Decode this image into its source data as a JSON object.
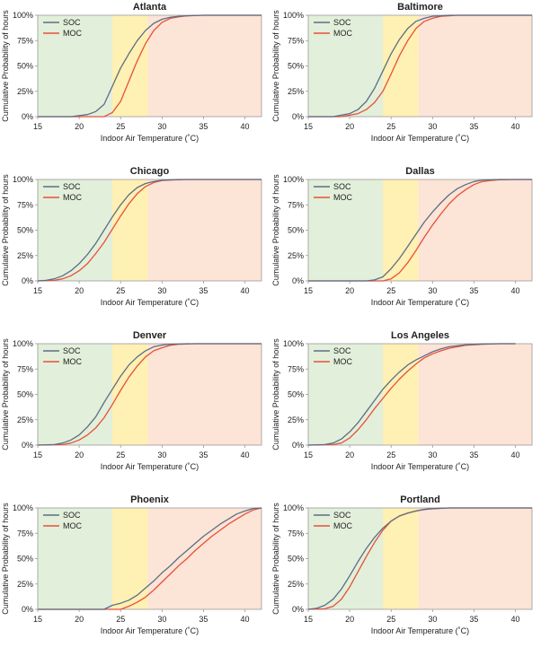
{
  "figure": {
    "xlabel": "Indoor Air Temperature (˚C)",
    "ylabel": "Cumulative Probability of hours",
    "x_ticks": [
      "15",
      "20",
      "25",
      "30",
      "35",
      "40"
    ],
    "y_ticks": [
      "0%",
      "25%",
      "50%",
      "75%",
      "100%"
    ],
    "legend": [
      "SOC",
      "MOC"
    ],
    "colors": {
      "SOC": "#5b6e86",
      "MOC": "#e8503a",
      "band_cool": "#e2efda",
      "band_neutral": "#fff0b3",
      "band_warm": "#fce4d6",
      "frame": "#9a9a9a"
    }
  },
  "chart_data": [
    {
      "type": "line",
      "title": "Atlanta",
      "xlim": [
        15,
        42
      ],
      "ylim": [
        0,
        100
      ],
      "bands": [
        {
          "from": 15,
          "to": 24,
          "name": "cool"
        },
        {
          "from": 24,
          "to": 28.3,
          "name": "neutral"
        },
        {
          "from": 28.3,
          "to": 42,
          "name": "warm"
        }
      ],
      "series": [
        {
          "name": "SOC",
          "x": [
            15,
            19,
            21,
            22,
            23,
            24,
            25,
            26,
            27,
            28,
            29,
            30,
            31,
            32,
            33,
            35,
            42
          ],
          "y": [
            0,
            0,
            2,
            5,
            12,
            30,
            48,
            62,
            75,
            85,
            92,
            96,
            98,
            99,
            99.5,
            100,
            100
          ]
        },
        {
          "name": "MOC",
          "x": [
            15,
            23,
            24,
            25,
            26,
            27,
            28,
            29,
            30,
            31,
            32,
            33,
            35,
            42
          ],
          "y": [
            0,
            0,
            4,
            15,
            35,
            55,
            72,
            85,
            93,
            97,
            98.5,
            99.5,
            100,
            100
          ]
        }
      ]
    },
    {
      "type": "line",
      "title": "Baltimore",
      "xlim": [
        15,
        42
      ],
      "ylim": [
        0,
        100
      ],
      "bands": [
        {
          "from": 15,
          "to": 24,
          "name": "cool"
        },
        {
          "from": 24,
          "to": 28.3,
          "name": "neutral"
        },
        {
          "from": 28.3,
          "to": 42,
          "name": "warm"
        }
      ],
      "series": [
        {
          "name": "SOC",
          "x": [
            15,
            18,
            20,
            21,
            22,
            23,
            24,
            25,
            26,
            27,
            28,
            29,
            30,
            31,
            32,
            33,
            35,
            42
          ],
          "y": [
            0,
            0,
            3,
            7,
            15,
            28,
            45,
            62,
            76,
            87,
            94,
            97,
            99,
            99.5,
            100,
            100,
            100,
            100
          ]
        },
        {
          "name": "MOC",
          "x": [
            15,
            19,
            21,
            22,
            23,
            24,
            25,
            26,
            27,
            28,
            29,
            30,
            31,
            32,
            33,
            35,
            42
          ],
          "y": [
            0,
            0,
            3,
            7,
            14,
            25,
            42,
            60,
            75,
            87,
            94,
            97,
            99,
            99.5,
            100,
            100,
            100
          ]
        }
      ]
    },
    {
      "type": "line",
      "title": "Chicago",
      "xlim": [
        15,
        42
      ],
      "ylim": [
        0,
        100
      ],
      "bands": [
        {
          "from": 15,
          "to": 24,
          "name": "cool"
        },
        {
          "from": 24,
          "to": 28.3,
          "name": "neutral"
        },
        {
          "from": 28.3,
          "to": 42,
          "name": "warm"
        }
      ],
      "series": [
        {
          "name": "SOC",
          "x": [
            15,
            16,
            17,
            18,
            19,
            20,
            21,
            22,
            23,
            24,
            25,
            26,
            27,
            28,
            29,
            30,
            32,
            42
          ],
          "y": [
            0,
            0.5,
            2,
            5,
            10,
            17,
            26,
            37,
            50,
            63,
            75,
            85,
            92,
            96,
            98,
            99.3,
            100,
            100
          ]
        },
        {
          "name": "MOC",
          "x": [
            15,
            17,
            18,
            19,
            20,
            21,
            22,
            23,
            24,
            25,
            26,
            27,
            28,
            29,
            30,
            31,
            33,
            42
          ],
          "y": [
            0,
            0.5,
            2,
            5,
            10,
            17,
            27,
            38,
            51,
            64,
            76,
            86,
            93,
            97,
            99,
            99.5,
            100,
            100
          ]
        }
      ]
    },
    {
      "type": "line",
      "title": "Dallas",
      "xlim": [
        15,
        42
      ],
      "ylim": [
        0,
        100
      ],
      "bands": [
        {
          "from": 15,
          "to": 24,
          "name": "cool"
        },
        {
          "from": 24,
          "to": 28.3,
          "name": "neutral"
        },
        {
          "from": 28.3,
          "to": 42,
          "name": "warm"
        }
      ],
      "series": [
        {
          "name": "SOC",
          "x": [
            15,
            22,
            23,
            24,
            25,
            26,
            27,
            28,
            29,
            30,
            31,
            32,
            33,
            34,
            35,
            36,
            38,
            42
          ],
          "y": [
            0,
            0,
            1,
            4,
            12,
            22,
            34,
            46,
            58,
            68,
            77,
            85,
            91,
            95,
            98,
            99.5,
            100,
            100
          ]
        },
        {
          "name": "MOC",
          "x": [
            15,
            24,
            25,
            26,
            27,
            28,
            29,
            30,
            31,
            32,
            33,
            34,
            35,
            36,
            37,
            38,
            40,
            42
          ],
          "y": [
            0,
            0,
            2,
            8,
            18,
            30,
            43,
            55,
            66,
            76,
            84,
            90,
            95,
            98,
            99,
            99.7,
            100,
            100
          ]
        }
      ]
    },
    {
      "type": "line",
      "title": "Denver",
      "xlim": [
        15,
        42
      ],
      "ylim": [
        0,
        100
      ],
      "bands": [
        {
          "from": 15,
          "to": 24,
          "name": "cool"
        },
        {
          "from": 24,
          "to": 28.3,
          "name": "neutral"
        },
        {
          "from": 28.3,
          "to": 42,
          "name": "warm"
        }
      ],
      "series": [
        {
          "name": "SOC",
          "x": [
            15,
            17,
            18,
            19,
            20,
            21,
            22,
            23,
            24,
            25,
            26,
            27,
            28,
            29,
            30,
            31,
            33,
            42
          ],
          "y": [
            0,
            0.5,
            2,
            5,
            10,
            18,
            28,
            42,
            55,
            68,
            79,
            87,
            93,
            97,
            98.7,
            99.5,
            100,
            100
          ]
        },
        {
          "name": "MOC",
          "x": [
            15,
            18,
            19,
            20,
            21,
            22,
            23,
            24,
            25,
            26,
            27,
            28,
            29,
            30,
            31,
            32,
            34,
            42
          ],
          "y": [
            0,
            0.5,
            2,
            5,
            10,
            17,
            27,
            40,
            54,
            67,
            78,
            87,
            93,
            96,
            98.5,
            99.5,
            100,
            100
          ]
        }
      ]
    },
    {
      "type": "line",
      "title": "Los Angeles",
      "xlim": [
        15,
        42
      ],
      "ylim": [
        0,
        100
      ],
      "bands": [
        {
          "from": 15,
          "to": 24,
          "name": "cool"
        },
        {
          "from": 24,
          "to": 28.3,
          "name": "neutral"
        },
        {
          "from": 28.3,
          "to": 42,
          "name": "warm"
        }
      ],
      "series": [
        {
          "name": "SOC",
          "x": [
            15,
            17,
            18,
            19,
            20,
            21,
            22,
            23,
            24,
            25,
            26,
            27,
            28,
            29,
            30,
            31,
            32,
            34,
            36,
            38,
            40
          ],
          "y": [
            0,
            0.5,
            2,
            6,
            13,
            22,
            33,
            44,
            55,
            64,
            72,
            79,
            84,
            88,
            92,
            95,
            97,
            99,
            99.7,
            100,
            100
          ]
        },
        {
          "name": "MOC",
          "x": [
            15,
            18,
            19,
            20,
            21,
            22,
            23,
            24,
            25,
            26,
            27,
            28,
            29,
            30,
            31,
            32,
            34,
            36,
            38,
            40
          ],
          "y": [
            0,
            0.5,
            2,
            7,
            15,
            25,
            36,
            46,
            56,
            65,
            73,
            80,
            86,
            90,
            93,
            95.5,
            98.5,
            99.5,
            100,
            100
          ]
        }
      ]
    },
    {
      "type": "line",
      "title": "Phoenix",
      "xlim": [
        15,
        42
      ],
      "ylim": [
        0,
        100
      ],
      "bands": [
        {
          "from": 15,
          "to": 24,
          "name": "cool"
        },
        {
          "from": 24,
          "to": 28.3,
          "name": "neutral"
        },
        {
          "from": 28.3,
          "to": 42,
          "name": "warm"
        }
      ],
      "series": [
        {
          "name": "SOC",
          "x": [
            15,
            23,
            24,
            25,
            26,
            27,
            28,
            29,
            30,
            31,
            32,
            33,
            34,
            35,
            36,
            37,
            38,
            39,
            40,
            41,
            42
          ],
          "y": [
            0,
            0,
            4,
            6,
            9,
            14,
            21,
            28,
            36,
            43,
            51,
            58,
            65,
            72,
            78,
            84,
            89,
            94,
            97,
            99.5,
            100
          ]
        },
        {
          "name": "MOC",
          "x": [
            15,
            25,
            26,
            27,
            28,
            29,
            30,
            31,
            32,
            33,
            34,
            35,
            36,
            37,
            38,
            39,
            40,
            41,
            42
          ],
          "y": [
            0,
            0,
            3,
            7,
            12,
            19,
            27,
            35,
            43,
            50,
            58,
            65,
            72,
            78,
            84,
            89,
            94,
            98,
            100
          ]
        }
      ]
    },
    {
      "type": "line",
      "title": "Portland",
      "xlim": [
        15,
        42
      ],
      "ylim": [
        0,
        100
      ],
      "bands": [
        {
          "from": 15,
          "to": 24,
          "name": "cool"
        },
        {
          "from": 24,
          "to": 28.3,
          "name": "neutral"
        },
        {
          "from": 28.3,
          "to": 42,
          "name": "warm"
        }
      ],
      "series": [
        {
          "name": "SOC",
          "x": [
            15,
            16,
            17,
            18,
            19,
            20,
            21,
            22,
            23,
            24,
            25,
            26,
            27,
            28,
            29,
            30,
            32,
            34,
            42
          ],
          "y": [
            0,
            1,
            4,
            10,
            20,
            33,
            47,
            60,
            71,
            80,
            87,
            92,
            95,
            97,
            98.5,
            99.3,
            100,
            100,
            100
          ]
        },
        {
          "name": "MOC",
          "x": [
            15,
            17,
            18,
            19,
            20,
            21,
            22,
            23,
            24,
            25,
            26,
            27,
            28,
            29,
            30,
            32,
            34,
            42
          ],
          "y": [
            0,
            0.5,
            3,
            10,
            22,
            37,
            52,
            66,
            78,
            87,
            92,
            95,
            97,
            98.5,
            99.3,
            100,
            100,
            100
          ]
        }
      ]
    }
  ]
}
